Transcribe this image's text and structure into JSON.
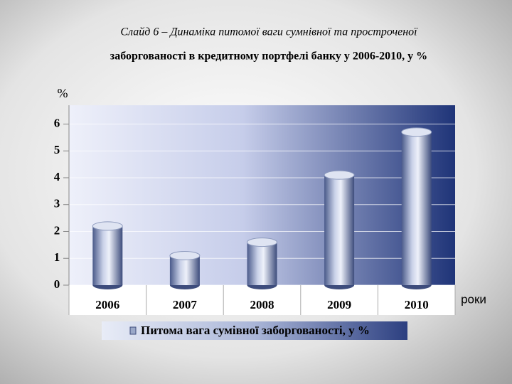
{
  "chart_data": {
    "type": "bar",
    "title": [
      "Слайд 6 – Динаміка питомої ваги сумнівної та простроченої",
      "заборгованості в кредитному портфелі банку у 2006-2010, у %"
    ],
    "y_label": "%",
    "x_label": "роки",
    "categories": [
      "2006",
      "2007",
      "2008",
      "2009",
      "2010"
    ],
    "series": [
      {
        "name": "Питома вага сумівної заборгованості, у %",
        "color": "#9aa8c8",
        "values": [
          2.2,
          1.1,
          1.6,
          4.1,
          5.7
        ]
      }
    ],
    "ylim": [
      0,
      6.7
    ],
    "yticks": [
      0,
      1,
      2,
      3,
      4,
      5,
      6
    ],
    "grid": true,
    "legend": "bottom"
  }
}
